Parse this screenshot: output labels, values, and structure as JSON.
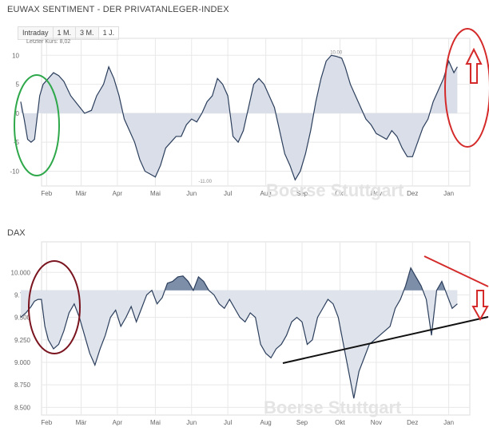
{
  "header": {
    "title": "EUWAX SENTIMENT - DER PRIVATANLEGER-INDEX",
    "tabs": [
      "Intraday",
      "1 M.",
      "3 M.",
      "1 J."
    ],
    "last_price_label": "Letzter Kurs: 8,02",
    "watermark": "Boerse Stuttgart"
  },
  "chart_data": [
    {
      "type": "area",
      "title": "EUWAX SENTIMENT - DER PRIVATANLEGER-INDEX",
      "annotations": [
        "Letzter Kurs: 8,02",
        "10.00",
        "-11.00"
      ],
      "ylim": [
        -12,
        11
      ],
      "yticks": [
        10,
        5,
        0,
        -5,
        -10
      ],
      "ytick_labels": [
        "10",
        "5",
        "0",
        "-5",
        "-10"
      ],
      "baseline": 0,
      "months": [
        "Feb",
        "Mär",
        "Apr",
        "Mai",
        "Jun",
        "Jul",
        "Aug",
        "Sep",
        "Okt",
        "Nov",
        "Dez",
        "Jan"
      ],
      "month_pos": [
        2,
        22,
        43,
        65,
        86,
        107,
        129,
        150,
        172,
        193,
        214,
        235
      ],
      "x": [
        -13,
        -11,
        -9,
        -7,
        -5,
        -2,
        0,
        3,
        6,
        9,
        12,
        16,
        20,
        24,
        28,
        31,
        35,
        38,
        41,
        44,
        47,
        50,
        53,
        56,
        59,
        62,
        65,
        68,
        71,
        74,
        77,
        80,
        83,
        86,
        89,
        92,
        95,
        98,
        101,
        104,
        107,
        110,
        113,
        116,
        119,
        122,
        125,
        128,
        131,
        134,
        137,
        140,
        143,
        146,
        149,
        152,
        155,
        158,
        161,
        164,
        167,
        170,
        173,
        175,
        178,
        181,
        184,
        187,
        190,
        193,
        196,
        199,
        202,
        205,
        208,
        211,
        214,
        217,
        220,
        223,
        226,
        229,
        232,
        235,
        238,
        240
      ],
      "values": [
        2,
        -1,
        -4.5,
        -5,
        -4.5,
        3,
        5,
        6,
        7,
        6.5,
        5.5,
        3,
        1.5,
        0,
        0.5,
        3,
        5,
        8,
        6,
        3,
        -1,
        -3,
        -5,
        -8,
        -10,
        -10.5,
        -11,
        -9,
        -6,
        -5,
        -4,
        -4,
        -2,
        -1,
        -1.5,
        0,
        2,
        3,
        6,
        5,
        3,
        -4,
        -5,
        -3,
        1,
        5,
        6,
        5,
        3,
        1,
        -3,
        -7,
        -9,
        -11.5,
        -10,
        -7,
        -3,
        2,
        6,
        9,
        10,
        9.8,
        9.5,
        8,
        5,
        3,
        1,
        -1,
        -2,
        -3.5,
        -4,
        -4.5,
        -3,
        -4,
        -6,
        -7.5,
        -7.5,
        -5,
        -2.5,
        -1,
        2,
        4,
        6,
        9,
        7,
        8.02
      ]
    },
    {
      "type": "area",
      "title": "DAX",
      "ylim": [
        8450,
        10100
      ],
      "yticks": [
        10000,
        9750,
        9500,
        9250,
        9000,
        8750,
        8500
      ],
      "ytick_labels": [
        "10.000",
        "9.750",
        "9.500",
        "9.250",
        "9.000",
        "8.750",
        "8.500"
      ],
      "baseline": 9800,
      "months": [
        "Feb",
        "Mär",
        "Apr",
        "Mai",
        "Jun",
        "Jul",
        "Aug",
        "Sep",
        "Okt",
        "Nov",
        "Dez",
        "Jan"
      ],
      "month_pos": [
        2,
        22,
        43,
        65,
        86,
        107,
        129,
        150,
        172,
        193,
        214,
        235
      ],
      "x": [
        -13,
        -10,
        -7,
        -5,
        -3,
        -1,
        1,
        3,
        6,
        9,
        12,
        15,
        18,
        21,
        24,
        27,
        30,
        33,
        36,
        39,
        42,
        45,
        48,
        51,
        54,
        57,
        60,
        63,
        66,
        69,
        72,
        75,
        78,
        81,
        84,
        87,
        90,
        93,
        96,
        99,
        102,
        105,
        108,
        111,
        114,
        117,
        120,
        123,
        126,
        129,
        132,
        135,
        138,
        141,
        144,
        147,
        150,
        153,
        156,
        159,
        162,
        165,
        168,
        171,
        174,
        176,
        178,
        180,
        183,
        186,
        189,
        192,
        195,
        198,
        201,
        204,
        207,
        210,
        213,
        216,
        219,
        222,
        225,
        228,
        231,
        234,
        237,
        240
      ],
      "values": [
        9500,
        9550,
        9620,
        9680,
        9700,
        9700,
        9400,
        9250,
        9150,
        9200,
        9350,
        9550,
        9650,
        9500,
        9300,
        9100,
        8970,
        9150,
        9300,
        9500,
        9580,
        9400,
        9500,
        9620,
        9450,
        9600,
        9750,
        9800,
        9650,
        9720,
        9880,
        9900,
        9950,
        9960,
        9900,
        9800,
        9950,
        9900,
        9800,
        9750,
        9650,
        9600,
        9700,
        9600,
        9500,
        9450,
        9550,
        9500,
        9200,
        9100,
        9050,
        9150,
        9200,
        9300,
        9450,
        9500,
        9450,
        9200,
        9250,
        9500,
        9600,
        9700,
        9650,
        9500,
        9200,
        9000,
        8800,
        8600,
        8900,
        9050,
        9200,
        9250,
        9300,
        9350,
        9400,
        9600,
        9700,
        9850,
        10050,
        9950,
        9850,
        9700,
        9300,
        9800,
        9900,
        9750,
        9600,
        9650
      ]
    }
  ]
}
